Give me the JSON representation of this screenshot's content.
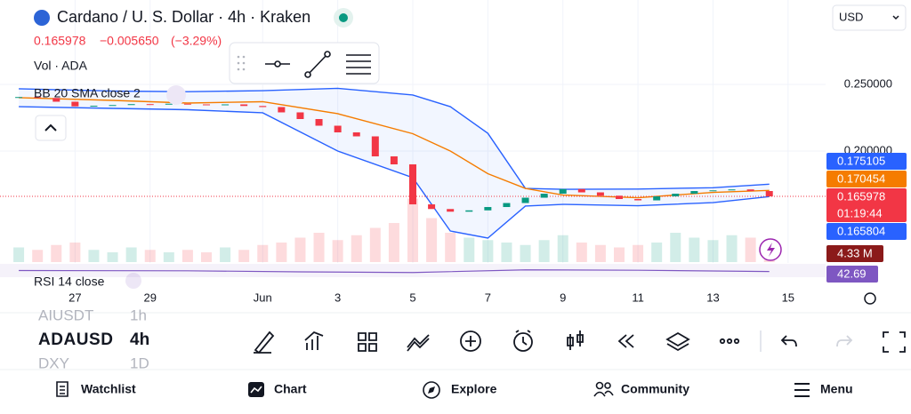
{
  "header": {
    "title": "Cardano / U. S. Dollar · 4h · Kraken",
    "change": "−0.005650",
    "change_pct": "(−3.29%)",
    "volume_legend": "Vol · ADA",
    "bb_legend": "BB 20 SMA close 2",
    "rsi_legend": "RSI 14 close",
    "currency": "USD",
    "countdown": "01:19:44",
    "volume_last": "4.33 M"
  },
  "chart_data": {
    "type": "candlestick",
    "x": [
      -1.5,
      -1,
      -0.5,
      0,
      0.5,
      1,
      1.5,
      2,
      2.5,
      3,
      3.5,
      4,
      4.5,
      5,
      5.5,
      6,
      6.5,
      7,
      7.5,
      8,
      8.5,
      9,
      9.5,
      10,
      10.5,
      11,
      11.5,
      12,
      12.5,
      13,
      13.5,
      14,
      14.5,
      15,
      15.5,
      16,
      16.5,
      17,
      17.5,
      18,
      18.5
    ],
    "open": [
      0.24,
      0.2405,
      0.2398,
      0.237,
      0.2335,
      0.234,
      0.2345,
      0.2352,
      0.2348,
      0.2355,
      0.235,
      0.2345,
      0.235,
      0.2338,
      0.233,
      0.229,
      0.224,
      0.219,
      0.214,
      0.211,
      0.196,
      0.19,
      0.16,
      0.1565,
      0.1545,
      0.1555,
      0.158,
      0.161,
      0.165,
      0.168,
      0.1715,
      0.169,
      0.1665,
      0.164,
      0.163,
      0.166,
      0.168,
      0.17,
      0.1705,
      0.1712,
      0.17
    ],
    "close": [
      0.2405,
      0.2398,
      0.237,
      0.2335,
      0.234,
      0.2345,
      0.2352,
      0.2348,
      0.2355,
      0.235,
      0.2345,
      0.235,
      0.2338,
      0.233,
      0.229,
      0.224,
      0.219,
      0.214,
      0.211,
      0.196,
      0.19,
      0.16,
      0.1565,
      0.1545,
      0.1555,
      0.158,
      0.161,
      0.165,
      0.168,
      0.1715,
      0.169,
      0.1665,
      0.164,
      0.163,
      0.166,
      0.168,
      0.17,
      0.1705,
      0.1712,
      0.17,
      0.165978
    ],
    "volume": [
      6,
      5,
      7,
      8,
      5,
      4,
      6,
      5,
      4,
      5,
      4,
      6,
      5,
      7,
      8,
      10,
      12,
      9,
      11,
      14,
      16,
      26,
      18,
      12,
      10,
      9,
      8,
      7,
      9,
      11,
      8,
      7,
      6,
      7,
      8,
      12,
      10,
      9,
      11,
      10,
      4.33
    ],
    "vlim": [
      0,
      40
    ],
    "up_color": "#089981",
    "down_color": "#f23645",
    "bands": {
      "x": [
        -1.5,
        1,
        3,
        5,
        7,
        9,
        10,
        11,
        12,
        13,
        15,
        17,
        18.5
      ],
      "upper": [
        0.2467,
        0.245,
        0.2445,
        0.2453,
        0.247,
        0.242,
        0.2333,
        0.2133,
        0.172,
        0.1713,
        0.1715,
        0.1725,
        0.175105
      ],
      "middle": [
        0.24,
        0.238,
        0.236,
        0.237,
        0.228,
        0.213,
        0.2,
        0.183,
        0.172,
        0.167,
        0.165,
        0.169,
        0.170454
      ],
      "lower": [
        0.2333,
        0.232,
        0.231,
        0.2287,
        0.2,
        0.18,
        0.14,
        0.1347,
        0.1587,
        0.16,
        0.159,
        0.1613,
        0.165804
      ],
      "band_color": "#2962ff",
      "middle_color": "#f57c00"
    },
    "rsi": {
      "x": [
        -1.5,
        3,
        6,
        9,
        12,
        15,
        18.5
      ],
      "values": [
        50,
        48,
        40,
        35,
        55,
        52,
        42.69
      ],
      "ylim": [
        0,
        100
      ],
      "color": "#7e57c2"
    },
    "xlim": [
      -2,
      20
    ],
    "xticks": [
      {
        "value": 0,
        "label": "27"
      },
      {
        "value": 2,
        "label": "29"
      },
      {
        "value": 5,
        "label": "Jun"
      },
      {
        "value": 7,
        "label": "3"
      },
      {
        "value": 9,
        "label": "5"
      },
      {
        "value": 11,
        "label": "7"
      },
      {
        "value": 13,
        "label": "9"
      },
      {
        "value": 15,
        "label": "11"
      },
      {
        "value": 17,
        "label": "13"
      },
      {
        "value": 19,
        "label": "15"
      }
    ],
    "ylim": [
      0.1167,
      0.3133
    ],
    "yticks": [
      {
        "value": 0.25,
        "label": "0.250000"
      },
      {
        "value": 0.2,
        "label": "0.200000"
      }
    ]
  },
  "symbols": [
    {
      "symbol": "AIUSDT",
      "interval": "1h"
    },
    {
      "symbol": "ADAUSD",
      "interval": "4h"
    },
    {
      "symbol": "DXY",
      "interval": "1D"
    }
  ],
  "nav": [
    "Watchlist",
    "Chart",
    "Explore",
    "Community",
    "Menu"
  ]
}
